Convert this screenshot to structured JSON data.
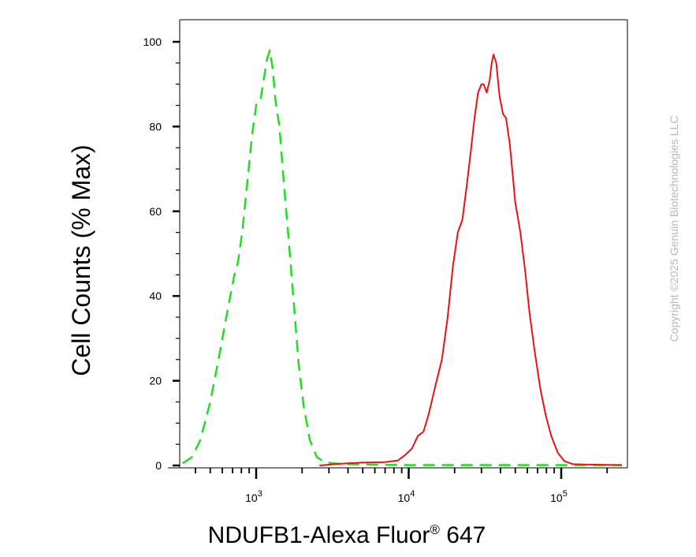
{
  "chart_data": {
    "type": "line",
    "title": "",
    "xlabel": "NDUFB1-Alexa Fluor",
    "xlabel_superscript": "®",
    "xlabel_suffix": " 647",
    "ylabel": "Cell Counts (% Max)",
    "x_scale": "log",
    "xlim": [
      310,
      250000
    ],
    "ylim": [
      0,
      100
    ],
    "y_ticks": [
      0,
      20,
      40,
      60,
      80,
      100
    ],
    "y_tick_labels": [
      "0",
      "20",
      "40",
      "60",
      "80",
      "100"
    ],
    "x_tick_base": "10",
    "x_tick_exponents": [
      "3",
      "4",
      "5"
    ],
    "x_tick_values": [
      1000,
      10000,
      100000
    ],
    "grid": false,
    "legend": "none",
    "series": [
      {
        "color": "#22dd22",
        "style": "dashed",
        "points": [
          [
            330,
            0.5
          ],
          [
            380,
            2
          ],
          [
            430,
            6
          ],
          [
            500,
            15
          ],
          [
            580,
            27
          ],
          [
            660,
            38
          ],
          [
            720,
            45
          ],
          [
            760,
            48
          ],
          [
            810,
            55
          ],
          [
            870,
            66
          ],
          [
            940,
            78
          ],
          [
            1010,
            86
          ],
          [
            1070,
            86.5
          ],
          [
            1120,
            91
          ],
          [
            1180,
            96
          ],
          [
            1230,
            98
          ],
          [
            1280,
            94
          ],
          [
            1340,
            86
          ],
          [
            1420,
            80
          ],
          [
            1500,
            69
          ],
          [
            1620,
            55
          ],
          [
            1750,
            40
          ],
          [
            1900,
            24
          ],
          [
            2050,
            14
          ],
          [
            2250,
            6
          ],
          [
            2500,
            2
          ],
          [
            2800,
            0.8
          ],
          [
            3200,
            0.5
          ],
          [
            4000,
            0.3
          ],
          [
            6000,
            0.2
          ],
          [
            10000,
            0.1
          ],
          [
            30000,
            0.1
          ],
          [
            100000,
            0.1
          ],
          [
            250000,
            0.1
          ]
        ]
      },
      {
        "color": "#ee1111",
        "style": "solid",
        "points": [
          [
            2600,
            0
          ],
          [
            3500,
            0.4
          ],
          [
            5000,
            0.7
          ],
          [
            7000,
            0.8
          ],
          [
            8500,
            1.2
          ],
          [
            9500,
            2.5
          ],
          [
            10500,
            4
          ],
          [
            11500,
            7
          ],
          [
            12500,
            8
          ],
          [
            13500,
            12
          ],
          [
            15000,
            19
          ],
          [
            16500,
            25
          ],
          [
            18000,
            35
          ],
          [
            19500,
            47
          ],
          [
            21000,
            55
          ],
          [
            22500,
            58
          ],
          [
            24000,
            66
          ],
          [
            25500,
            74
          ],
          [
            27000,
            82
          ],
          [
            28500,
            88
          ],
          [
            30000,
            90
          ],
          [
            31000,
            90
          ],
          [
            32500,
            88
          ],
          [
            34000,
            91
          ],
          [
            35000,
            95
          ],
          [
            36000,
            97
          ],
          [
            37500,
            95
          ],
          [
            39500,
            87
          ],
          [
            41500,
            83
          ],
          [
            43500,
            82
          ],
          [
            46000,
            76
          ],
          [
            50000,
            62
          ],
          [
            54000,
            55
          ],
          [
            58000,
            46
          ],
          [
            62000,
            36
          ],
          [
            67000,
            27
          ],
          [
            73000,
            18
          ],
          [
            79000,
            12
          ],
          [
            86000,
            7
          ],
          [
            95000,
            3
          ],
          [
            105000,
            1
          ],
          [
            120000,
            0.3
          ],
          [
            150000,
            0.2
          ],
          [
            250000,
            0.1
          ]
        ]
      }
    ]
  },
  "watermark": "Copyright ©2025 Genuin Biotechnologies LLC"
}
